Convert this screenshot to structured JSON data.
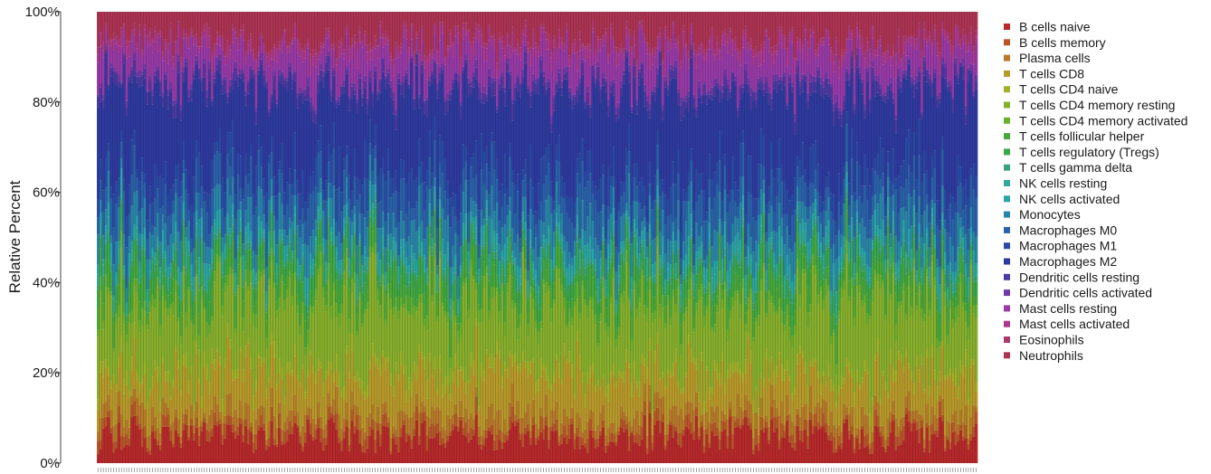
{
  "chart_data": {
    "type": "bar",
    "stacked": true,
    "normalized": true,
    "sample_count": 340,
    "ylabel": "Relative Percent",
    "ylim": [
      0,
      100
    ],
    "yticks": [
      0,
      20,
      40,
      60,
      80,
      100
    ],
    "ytick_labels": [
      "0%",
      "20%",
      "40%",
      "60%",
      "80%",
      "100%"
    ],
    "legend_position": "right",
    "series": [
      {
        "name": "B cells naive",
        "color": "#b8292a",
        "mean_percent": 6
      },
      {
        "name": "B cells memory",
        "color": "#b8562a",
        "mean_percent": 2
      },
      {
        "name": "Plasma cells",
        "color": "#b87a2a",
        "mean_percent": 3
      },
      {
        "name": "T cells CD8",
        "color": "#b89a2a",
        "mean_percent": 8
      },
      {
        "name": "T cells CD4 naive",
        "color": "#a2b02a",
        "mean_percent": 2
      },
      {
        "name": "T cells CD4 memory resting",
        "color": "#88b02c",
        "mean_percent": 14
      },
      {
        "name": "T cells CD4 memory activated",
        "color": "#6bb030",
        "mean_percent": 2
      },
      {
        "name": "T cells follicular helper",
        "color": "#48a83a",
        "mean_percent": 4
      },
      {
        "name": "T cells regulatory (Tregs)",
        "color": "#3aa64a",
        "mean_percent": 3
      },
      {
        "name": "T cells gamma delta",
        "color": "#3ba27a",
        "mean_percent": 1
      },
      {
        "name": "NK cells resting",
        "color": "#2fa898",
        "mean_percent": 2
      },
      {
        "name": "NK cells activated",
        "color": "#2aa4a8",
        "mean_percent": 2
      },
      {
        "name": "Monocytes",
        "color": "#2a86a8",
        "mean_percent": 5
      },
      {
        "name": "Macrophages M0",
        "color": "#2a62a8",
        "mean_percent": 6
      },
      {
        "name": "Macrophages M1",
        "color": "#2a4aa4",
        "mean_percent": 5
      },
      {
        "name": "Macrophages M2",
        "color": "#2e3a9e",
        "mean_percent": 17
      },
      {
        "name": "Dendritic cells resting",
        "color": "#4b3aa0",
        "mean_percent": 2
      },
      {
        "name": "Dendritic cells activated",
        "color": "#6e3aa6",
        "mean_percent": 1
      },
      {
        "name": "Mast cells resting",
        "color": "#983aa6",
        "mean_percent": 6
      },
      {
        "name": "Mast cells activated",
        "color": "#aa3a8e",
        "mean_percent": 2
      },
      {
        "name": "Eosinophils",
        "color": "#ad3a6e",
        "mean_percent": 1
      },
      {
        "name": "Neutrophils",
        "color": "#ad3452",
        "mean_percent": 6
      }
    ]
  }
}
